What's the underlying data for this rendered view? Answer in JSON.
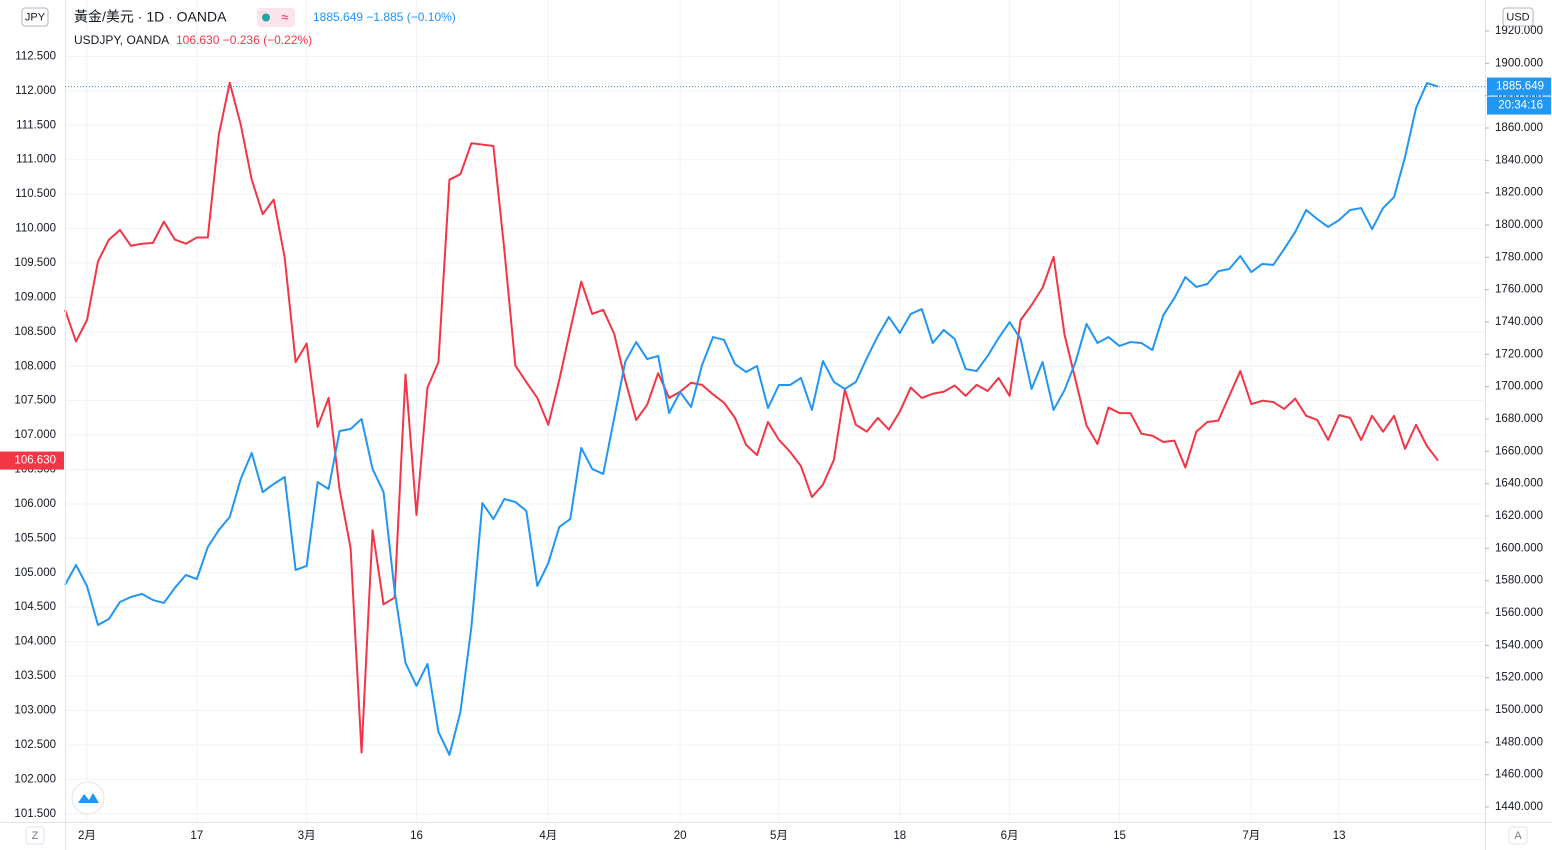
{
  "chart_data": {
    "type": "line",
    "left_unit": "JPY",
    "right_unit": "USD",
    "left_corner": "Z",
    "right_corner": "A",
    "countdown": "20:34:16",
    "grid": true,
    "categories": [
      null,
      null,
      "2月",
      null,
      null,
      null,
      null,
      null,
      null,
      null,
      null,
      null,
      "17",
      null,
      null,
      null,
      null,
      null,
      null,
      null,
      null,
      null,
      "3月",
      null,
      null,
      null,
      null,
      null,
      null,
      null,
      null,
      null,
      "16",
      null,
      null,
      null,
      null,
      null,
      null,
      null,
      null,
      null,
      null,
      null,
      "4月",
      null,
      null,
      null,
      null,
      null,
      null,
      null,
      null,
      null,
      null,
      null,
      "20",
      null,
      null,
      null,
      null,
      null,
      null,
      null,
      null,
      "5月",
      null,
      null,
      null,
      null,
      null,
      null,
      null,
      null,
      null,
      null,
      "18",
      null,
      null,
      null,
      null,
      null,
      null,
      null,
      null,
      null,
      "6月",
      null,
      null,
      null,
      null,
      null,
      null,
      null,
      null,
      null,
      "15",
      null,
      null,
      null,
      null,
      null,
      null,
      null,
      null,
      null,
      null,
      null,
      "7月",
      null,
      null,
      null,
      null,
      null,
      null,
      null,
      "13",
      null,
      null,
      null,
      null,
      null,
      null,
      null,
      null,
      null
    ],
    "series": [
      {
        "name": "USDJPY, OANDA",
        "quote": "106.630 −0.236 (−0.22%)",
        "color": "#f23645",
        "axis": "y",
        "values": [
          108.82,
          108.36,
          108.67,
          109.52,
          109.84,
          109.98,
          109.75,
          109.78,
          109.79,
          110.1,
          109.84,
          109.78,
          109.87,
          109.87,
          111.36,
          112.12,
          111.51,
          110.71,
          110.21,
          110.42,
          109.58,
          108.06,
          108.33,
          107.12,
          107.54,
          106.21,
          105.36,
          102.39,
          105.62,
          104.54,
          104.64,
          107.88,
          105.84,
          107.69,
          108.06,
          110.71,
          110.79,
          111.24,
          111.22,
          111.2,
          109.69,
          108.01,
          107.77,
          107.54,
          107.15,
          107.8,
          108.53,
          109.23,
          108.76,
          108.82,
          108.47,
          107.8,
          107.22,
          107.44,
          107.9,
          107.54,
          107.63,
          107.76,
          107.73,
          107.59,
          107.47,
          107.25,
          106.86,
          106.71,
          107.19,
          106.93,
          106.76,
          106.55,
          106.1,
          106.28,
          106.64,
          107.66,
          107.15,
          107.05,
          107.25,
          107.08,
          107.34,
          107.69,
          107.54,
          107.6,
          107.63,
          107.72,
          107.57,
          107.73,
          107.64,
          107.83,
          107.57,
          108.67,
          108.89,
          109.14,
          109.59,
          108.46,
          107.8,
          107.14,
          106.87,
          107.4,
          107.32,
          107.32,
          107.02,
          106.99,
          106.9,
          106.92,
          106.53,
          107.05,
          107.19,
          107.21,
          107.57,
          107.93,
          107.45,
          107.5,
          107.48,
          107.38,
          107.53,
          107.28,
          107.22,
          106.93,
          107.29,
          107.25,
          106.93,
          107.28,
          107.05,
          107.28,
          106.8,
          107.15,
          106.84,
          106.63
        ]
      },
      {
        "name": "黃金/美元 · 1D · OANDA",
        "quote": "1885.649 −1.885 (−0.10%)",
        "color": "#2196f3",
        "axis": "y2",
        "values": [
          1577.3,
          1589.7,
          1576.7,
          1552.6,
          1556.3,
          1566.8,
          1569.9,
          1571.8,
          1568.0,
          1566.2,
          1575.5,
          1583.5,
          1581.0,
          1600.8,
          1611.3,
          1619.4,
          1642.9,
          1659.0,
          1634.8,
          1639.8,
          1644.1,
          1586.6,
          1589.1,
          1641.0,
          1636.7,
          1672.6,
          1673.8,
          1680.0,
          1649.1,
          1634.8,
          1574.2,
          1529.1,
          1514.9,
          1528.5,
          1486.4,
          1472.2,
          1498.8,
          1551.3,
          1628.0,
          1618.1,
          1630.5,
          1628.7,
          1623.1,
          1576.7,
          1590.9,
          1613.2,
          1618.1,
          1662.1,
          1649.1,
          1646.0,
          1680.6,
          1715.3,
          1727.6,
          1717.1,
          1719.0,
          1683.7,
          1696.7,
          1687.4,
          1713.4,
          1730.7,
          1728.9,
          1714.0,
          1709.1,
          1712.8,
          1686.8,
          1701.0,
          1701.0,
          1705.4,
          1685.6,
          1715.9,
          1702.9,
          1698.6,
          1702.9,
          1717.7,
          1731.3,
          1743.1,
          1733.2,
          1745.0,
          1748.0,
          1727.0,
          1735.1,
          1729.5,
          1710.9,
          1709.7,
          1719.0,
          1730.1,
          1740.0,
          1729.5,
          1698.6,
          1715.3,
          1685.6,
          1697.9,
          1715.3,
          1738.8,
          1727.0,
          1730.7,
          1725.2,
          1727.6,
          1727.0,
          1722.7,
          1744.3,
          1754.8,
          1767.8,
          1761.7,
          1763.5,
          1771.5,
          1772.8,
          1780.8,
          1770.9,
          1775.9,
          1775.3,
          1785.2,
          1795.7,
          1809.3,
          1803.7,
          1798.8,
          1803.1,
          1809.3,
          1810.5,
          1797.5,
          1810.5,
          1817.3,
          1842.1,
          1872.4,
          1887.8,
          1885.649
        ]
      }
    ],
    "price_tags": [
      {
        "value": 106.63,
        "label": "106.630",
        "axis": "y",
        "color": "#f23645"
      },
      {
        "value": 1885.649,
        "label": "1885.649",
        "axis": "y2",
        "color": "#2196f3"
      }
    ],
    "ylim": [
      101.38,
      113.32
    ],
    "yticks": [
      {
        "value": 101.5,
        "label": "101.500"
      },
      {
        "value": 102,
        "label": "102.000"
      },
      {
        "value": 102.5,
        "label": "102.500"
      },
      {
        "value": 103,
        "label": "103.000"
      },
      {
        "value": 103.5,
        "label": "103.500"
      },
      {
        "value": 104,
        "label": "104.000"
      },
      {
        "value": 104.5,
        "label": "104.500"
      },
      {
        "value": 105,
        "label": "105.000"
      },
      {
        "value": 105.5,
        "label": "105.500"
      },
      {
        "value": 106,
        "label": "106.000"
      },
      {
        "value": 106.5,
        "label": "106.500"
      },
      {
        "value": 107,
        "label": "107.000"
      },
      {
        "value": 107.5,
        "label": "107.500"
      },
      {
        "value": 108,
        "label": "108.000"
      },
      {
        "value": 108.5,
        "label": "108.500"
      },
      {
        "value": 109,
        "label": "109.000"
      },
      {
        "value": 109.5,
        "label": "109.500"
      },
      {
        "value": 110,
        "label": "110.000"
      },
      {
        "value": 110.5,
        "label": "110.500"
      },
      {
        "value": 111,
        "label": "111.000"
      },
      {
        "value": 111.5,
        "label": "111.500"
      },
      {
        "value": 112,
        "label": "112.000"
      },
      {
        "value": 112.5,
        "label": "112.500"
      }
    ],
    "y2lim": [
      1430.7,
      1939.2
    ],
    "y2ticks": [
      {
        "value": 1440,
        "label": "1440.000"
      },
      {
        "value": 1460,
        "label": "1460.000"
      },
      {
        "value": 1480,
        "label": "1480.000"
      },
      {
        "value": 1500,
        "label": "1500.000"
      },
      {
        "value": 1520,
        "label": "1520.000"
      },
      {
        "value": 1540,
        "label": "1540.000"
      },
      {
        "value": 1560,
        "label": "1560.000"
      },
      {
        "value": 1580,
        "label": "1580.000"
      },
      {
        "value": 1600,
        "label": "1600.000"
      },
      {
        "value": 1620,
        "label": "1620.000"
      },
      {
        "value": 1640,
        "label": "1640.000"
      },
      {
        "value": 1660,
        "label": "1660.000"
      },
      {
        "value": 1680,
        "label": "1680.000"
      },
      {
        "value": 1700,
        "label": "1700.000"
      },
      {
        "value": 1720,
        "label": "1720.000"
      },
      {
        "value": 1740,
        "label": "1740.000"
      },
      {
        "value": 1760,
        "label": "1760.000"
      },
      {
        "value": 1780,
        "label": "1780.000"
      },
      {
        "value": 1800,
        "label": "1800.000"
      },
      {
        "value": 1820,
        "label": "1820.000"
      },
      {
        "value": 1840,
        "label": "1840.000"
      },
      {
        "value": 1860,
        "label": "1860.000"
      },
      {
        "value": 1880,
        "label": "1880.000"
      },
      {
        "value": 1900,
        "label": "1900.000"
      },
      {
        "value": 1920,
        "label": "1920.000"
      }
    ]
  }
}
